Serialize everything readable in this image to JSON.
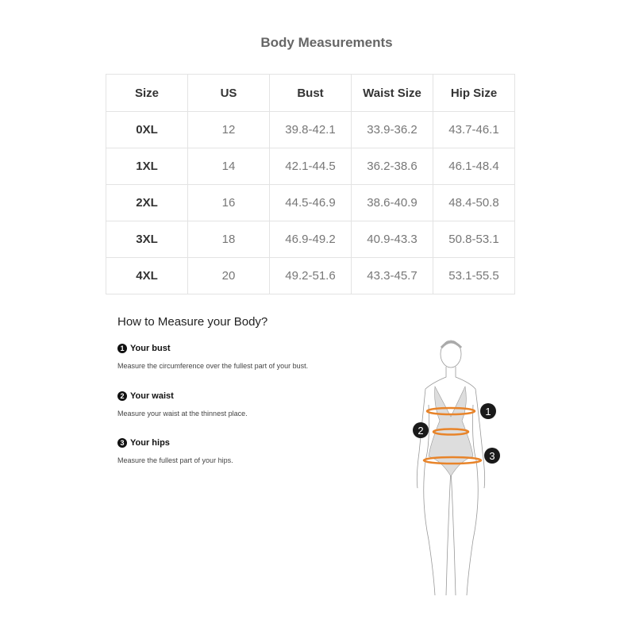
{
  "title": "Body Measurements",
  "table": {
    "headers": [
      "Size",
      "US",
      "Bust",
      "Waist Size",
      "Hip Size"
    ],
    "rows": [
      [
        "0XL",
        "12",
        "39.8-42.1",
        "33.9-36.2",
        "43.7-46.1"
      ],
      [
        "1XL",
        "14",
        "42.1-44.5",
        "36.2-38.6",
        "46.1-48.4"
      ],
      [
        "2XL",
        "16",
        "44.5-46.9",
        "38.6-40.9",
        "48.4-50.8"
      ],
      [
        "3XL",
        "18",
        "46.9-49.2",
        "40.9-43.3",
        "50.8-53.1"
      ],
      [
        "4XL",
        "20",
        "49.2-51.6",
        "43.3-45.7",
        "53.1-55.5"
      ]
    ]
  },
  "howto": {
    "heading": "How to Measure your Body?",
    "steps": [
      {
        "num": "1",
        "title": "Your bust",
        "text": "Measure the circumference over the fullest part of your bust."
      },
      {
        "num": "2",
        "title": "Your waist",
        "text": "Measure your waist at the thinnest place."
      },
      {
        "num": "3",
        "title": "Your hips",
        "text": "Measure the fullest part of your hips."
      }
    ]
  },
  "figure": {
    "markers": [
      "1",
      "2",
      "3"
    ],
    "band_color": "#e8842a",
    "marker_color": "#1a1a1a"
  }
}
